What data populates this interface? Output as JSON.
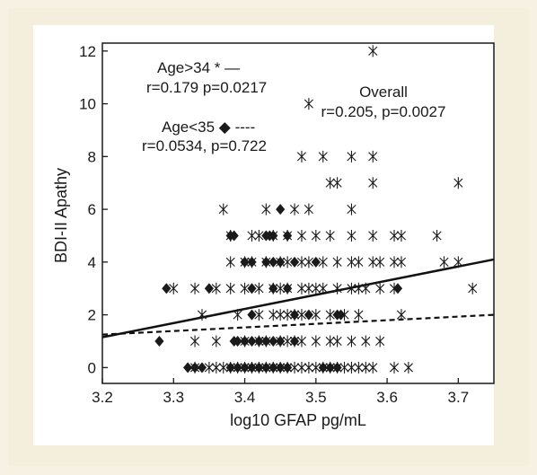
{
  "chart_data": {
    "type": "scatter",
    "title": "",
    "xlabel": "log10 GFAP pg/mL",
    "ylabel": "BDI-II Apathy",
    "xlim": [
      3.2,
      3.75
    ],
    "ylim": [
      -0.6,
      12.3
    ],
    "x_ticks": [
      "3.2",
      "3.3",
      "3.4",
      "3.5",
      "3.6",
      "3.7"
    ],
    "y_ticks": [
      "0",
      "2",
      "4",
      "6",
      "8",
      "10",
      "12"
    ],
    "grid": false,
    "annotations": {
      "older_label": "Age>34 * —",
      "older_stats": "r=0.179 p=0.0217",
      "younger_label": "Age<35 ◆ ----",
      "younger_stats": "r=0.0534, p=0.722",
      "overall_label": "Overall",
      "overall_stats": "r=0.205, p=0.0027"
    },
    "series": [
      {
        "marker": "asterisk",
        "color": "#1a1a1a",
        "points": [
          [
            3.58,
            12
          ],
          [
            3.49,
            10
          ],
          [
            3.48,
            8
          ],
          [
            3.51,
            8
          ],
          [
            3.55,
            8
          ],
          [
            3.58,
            8
          ],
          [
            3.52,
            7
          ],
          [
            3.53,
            7
          ],
          [
            3.58,
            7
          ],
          [
            3.7,
            7
          ],
          [
            3.37,
            6
          ],
          [
            3.43,
            6
          ],
          [
            3.47,
            6
          ],
          [
            3.49,
            6
          ],
          [
            3.55,
            6
          ],
          [
            3.38,
            5
          ],
          [
            3.41,
            5
          ],
          [
            3.42,
            5
          ],
          [
            3.44,
            5
          ],
          [
            3.46,
            5
          ],
          [
            3.48,
            5
          ],
          [
            3.5,
            5
          ],
          [
            3.52,
            5
          ],
          [
            3.55,
            5
          ],
          [
            3.58,
            5
          ],
          [
            3.61,
            5
          ],
          [
            3.62,
            5
          ],
          [
            3.67,
            5
          ],
          [
            3.38,
            4
          ],
          [
            3.4,
            4
          ],
          [
            3.41,
            4
          ],
          [
            3.43,
            4
          ],
          [
            3.45,
            4
          ],
          [
            3.46,
            4
          ],
          [
            3.48,
            4
          ],
          [
            3.49,
            4
          ],
          [
            3.51,
            4
          ],
          [
            3.53,
            4
          ],
          [
            3.55,
            4
          ],
          [
            3.56,
            4
          ],
          [
            3.58,
            4
          ],
          [
            3.59,
            4
          ],
          [
            3.61,
            4
          ],
          [
            3.62,
            4
          ],
          [
            3.68,
            4
          ],
          [
            3.7,
            4
          ],
          [
            3.3,
            3
          ],
          [
            3.33,
            3
          ],
          [
            3.36,
            3
          ],
          [
            3.38,
            3
          ],
          [
            3.4,
            3
          ],
          [
            3.42,
            3
          ],
          [
            3.44,
            3
          ],
          [
            3.45,
            3
          ],
          [
            3.46,
            3
          ],
          [
            3.48,
            3
          ],
          [
            3.49,
            3
          ],
          [
            3.5,
            3
          ],
          [
            3.51,
            3
          ],
          [
            3.53,
            3
          ],
          [
            3.55,
            3
          ],
          [
            3.56,
            3
          ],
          [
            3.57,
            3
          ],
          [
            3.59,
            3
          ],
          [
            3.61,
            3
          ],
          [
            3.72,
            3
          ],
          [
            3.34,
            2
          ],
          [
            3.39,
            2
          ],
          [
            3.42,
            2
          ],
          [
            3.44,
            2
          ],
          [
            3.45,
            2
          ],
          [
            3.46,
            2
          ],
          [
            3.47,
            2
          ],
          [
            3.48,
            2
          ],
          [
            3.5,
            2
          ],
          [
            3.52,
            2
          ],
          [
            3.54,
            2
          ],
          [
            3.56,
            2
          ],
          [
            3.62,
            2
          ],
          [
            3.33,
            1
          ],
          [
            3.36,
            1
          ],
          [
            3.4,
            1
          ],
          [
            3.42,
            1
          ],
          [
            3.43,
            1
          ],
          [
            3.45,
            1
          ],
          [
            3.46,
            1
          ],
          [
            3.47,
            1
          ],
          [
            3.48,
            1
          ],
          [
            3.5,
            1
          ],
          [
            3.52,
            1
          ],
          [
            3.53,
            1
          ],
          [
            3.55,
            1
          ],
          [
            3.57,
            1
          ],
          [
            3.59,
            1
          ],
          [
            3.33,
            0
          ],
          [
            3.35,
            0
          ],
          [
            3.36,
            0
          ],
          [
            3.37,
            0
          ],
          [
            3.38,
            0
          ],
          [
            3.39,
            0
          ],
          [
            3.4,
            0
          ],
          [
            3.41,
            0
          ],
          [
            3.42,
            0
          ],
          [
            3.43,
            0
          ],
          [
            3.44,
            0
          ],
          [
            3.45,
            0
          ],
          [
            3.46,
            0
          ],
          [
            3.47,
            0
          ],
          [
            3.48,
            0
          ],
          [
            3.49,
            0
          ],
          [
            3.5,
            0
          ],
          [
            3.51,
            0
          ],
          [
            3.52,
            0
          ],
          [
            3.53,
            0
          ],
          [
            3.54,
            0
          ],
          [
            3.55,
            0
          ],
          [
            3.56,
            0
          ],
          [
            3.57,
            0
          ],
          [
            3.58,
            0
          ],
          [
            3.61,
            0
          ],
          [
            3.63,
            0
          ]
        ]
      },
      {
        "marker": "diamond",
        "color": "#1a1a1a",
        "points": [
          [
            3.45,
            6
          ],
          [
            3.38,
            5
          ],
          [
            3.385,
            5
          ],
          [
            3.43,
            5
          ],
          [
            3.435,
            5
          ],
          [
            3.44,
            5
          ],
          [
            3.46,
            5
          ],
          [
            3.4,
            4
          ],
          [
            3.41,
            4
          ],
          [
            3.43,
            4
          ],
          [
            3.44,
            4
          ],
          [
            3.45,
            4
          ],
          [
            3.47,
            4
          ],
          [
            3.5,
            4
          ],
          [
            3.29,
            3
          ],
          [
            3.35,
            3
          ],
          [
            3.41,
            3
          ],
          [
            3.44,
            3
          ],
          [
            3.46,
            3
          ],
          [
            3.615,
            3
          ],
          [
            3.41,
            2
          ],
          [
            3.47,
            2
          ],
          [
            3.49,
            2
          ],
          [
            3.53,
            2
          ],
          [
            3.535,
            2
          ],
          [
            3.28,
            1
          ],
          [
            3.385,
            1
          ],
          [
            3.39,
            1
          ],
          [
            3.4,
            1
          ],
          [
            3.41,
            1
          ],
          [
            3.42,
            1
          ],
          [
            3.43,
            1
          ],
          [
            3.44,
            1
          ],
          [
            3.45,
            1
          ],
          [
            3.47,
            1
          ],
          [
            3.32,
            0
          ],
          [
            3.33,
            0
          ],
          [
            3.34,
            0
          ],
          [
            3.38,
            0
          ],
          [
            3.39,
            0
          ],
          [
            3.4,
            0
          ],
          [
            3.41,
            0
          ],
          [
            3.42,
            0
          ],
          [
            3.43,
            0
          ],
          [
            3.44,
            0
          ],
          [
            3.45,
            0
          ],
          [
            3.46,
            0
          ],
          [
            3.51,
            0
          ],
          [
            3.52,
            0
          ],
          [
            3.53,
            0
          ]
        ]
      }
    ],
    "fit_lines": [
      {
        "style": "solid",
        "width": 2.5,
        "x": [
          3.2,
          3.75
        ],
        "y": [
          1.15,
          4.1
        ]
      },
      {
        "style": "dashed",
        "width": 2.2,
        "x": [
          3.2,
          3.75
        ],
        "y": [
          1.25,
          2.0
        ]
      }
    ]
  }
}
